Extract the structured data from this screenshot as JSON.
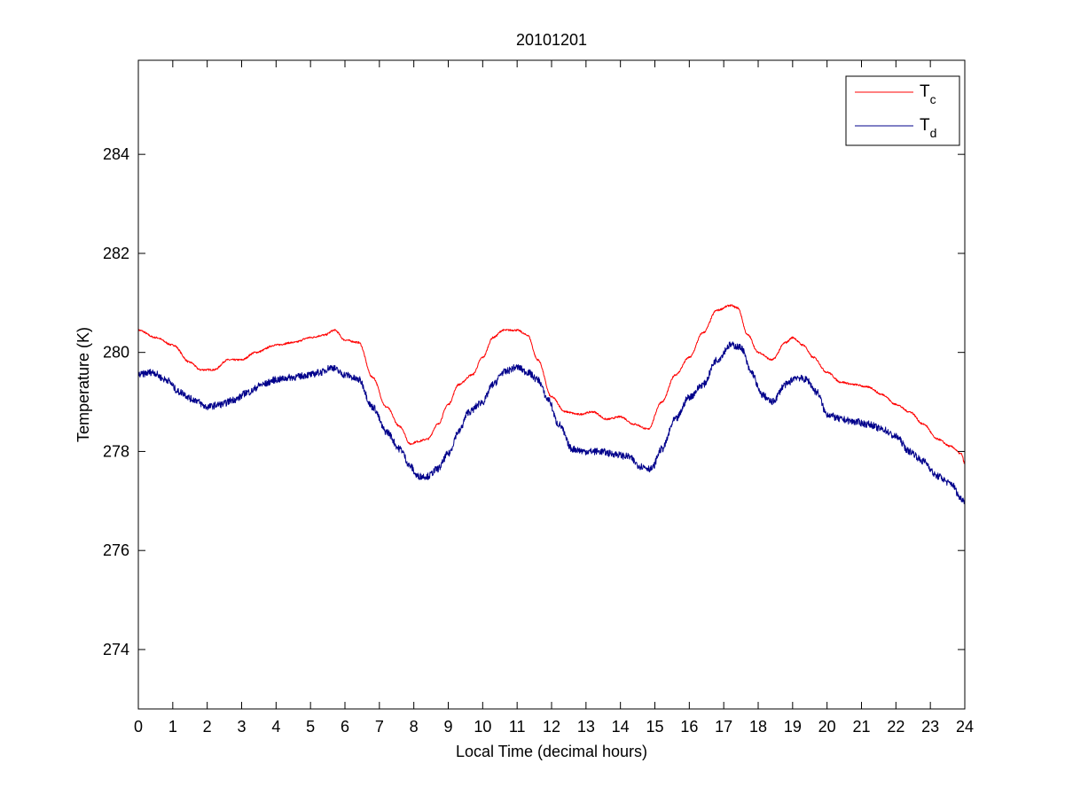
{
  "chart_data": {
    "type": "line",
    "title": "20101201",
    "xlabel": "Local Time (decimal hours)",
    "ylabel": "Temperature (K)",
    "xlim": [
      0,
      24
    ],
    "ylim": [
      272.8,
      285.9
    ],
    "xticks": [
      0,
      1,
      2,
      3,
      4,
      5,
      6,
      7,
      8,
      9,
      10,
      11,
      12,
      13,
      14,
      15,
      16,
      17,
      18,
      19,
      20,
      21,
      22,
      23,
      24
    ],
    "yticks": [
      274,
      276,
      278,
      280,
      282,
      284
    ],
    "grid": false,
    "legend_position": "top-right",
    "series": [
      {
        "name_main": "T",
        "name_sub": "c",
        "color": "#ff0000",
        "x": [
          0,
          0.5,
          1.0,
          1.5,
          1.8,
          2.2,
          2.6,
          3.0,
          3.4,
          4.0,
          4.5,
          5.0,
          5.4,
          5.7,
          6.0,
          6.4,
          6.8,
          7.2,
          7.6,
          7.9,
          8.1,
          8.4,
          8.7,
          9.0,
          9.3,
          9.7,
          10.0,
          10.3,
          10.6,
          11.0,
          11.3,
          11.6,
          12.0,
          12.4,
          12.8,
          13.2,
          13.6,
          14.0,
          14.4,
          14.8,
          15.2,
          15.6,
          16.0,
          16.4,
          16.8,
          17.2,
          17.4,
          17.7,
          18.0,
          18.4,
          18.8,
          19.0,
          19.3,
          19.6,
          20.0,
          20.4,
          20.8,
          21.2,
          21.6,
          22.0,
          22.4,
          22.8,
          23.2,
          23.6,
          23.9,
          24.0
        ],
        "y": [
          280.45,
          280.3,
          280.15,
          279.8,
          279.65,
          279.65,
          279.85,
          279.85,
          280.0,
          280.15,
          280.2,
          280.3,
          280.35,
          280.45,
          280.25,
          280.2,
          279.5,
          278.9,
          278.5,
          278.15,
          278.2,
          278.25,
          278.55,
          278.95,
          279.35,
          279.55,
          279.9,
          280.3,
          280.45,
          280.45,
          280.35,
          279.85,
          279.1,
          278.8,
          278.75,
          278.8,
          278.65,
          278.7,
          278.55,
          278.45,
          279.0,
          279.55,
          279.9,
          280.4,
          280.85,
          280.95,
          280.9,
          280.35,
          280.0,
          279.85,
          280.2,
          280.3,
          280.15,
          279.9,
          279.6,
          279.4,
          279.35,
          279.3,
          279.15,
          278.95,
          278.8,
          278.55,
          278.25,
          278.1,
          277.95,
          277.75
        ]
      },
      {
        "name_main": "T",
        "name_sub": "d",
        "color": "#00008b",
        "x": [
          0,
          0.4,
          0.8,
          1.2,
          1.6,
          2.0,
          2.4,
          2.8,
          3.2,
          3.6,
          4.0,
          4.5,
          5.0,
          5.3,
          5.6,
          6.0,
          6.4,
          6.8,
          7.2,
          7.6,
          7.9,
          8.1,
          8.4,
          8.7,
          9.0,
          9.3,
          9.6,
          10.0,
          10.3,
          10.6,
          11.0,
          11.3,
          11.6,
          11.9,
          12.2,
          12.6,
          13.0,
          13.4,
          13.8,
          14.2,
          14.6,
          14.9,
          15.2,
          15.6,
          16.0,
          16.4,
          16.8,
          17.2,
          17.5,
          17.8,
          18.1,
          18.4,
          18.8,
          19.1,
          19.4,
          19.7,
          20.0,
          20.4,
          20.8,
          21.2,
          21.6,
          22.0,
          22.4,
          22.8,
          23.2,
          23.6,
          23.9,
          24.0
        ],
        "y": [
          279.55,
          279.6,
          279.45,
          279.2,
          279.05,
          278.9,
          278.95,
          279.05,
          279.2,
          279.35,
          279.45,
          279.5,
          279.55,
          279.6,
          279.7,
          279.55,
          279.45,
          278.9,
          278.4,
          278.05,
          277.7,
          277.5,
          277.5,
          277.65,
          277.95,
          278.4,
          278.8,
          279.0,
          279.35,
          279.6,
          279.7,
          279.6,
          279.45,
          279.05,
          278.55,
          278.05,
          278.0,
          278.0,
          277.95,
          277.9,
          277.7,
          277.65,
          278.05,
          278.65,
          279.1,
          279.35,
          279.85,
          280.15,
          280.1,
          279.6,
          279.15,
          279.0,
          279.35,
          279.5,
          279.45,
          279.2,
          278.75,
          278.65,
          278.6,
          278.55,
          278.45,
          278.3,
          278.0,
          277.8,
          277.5,
          277.35,
          277.05,
          277.0
        ]
      }
    ]
  }
}
